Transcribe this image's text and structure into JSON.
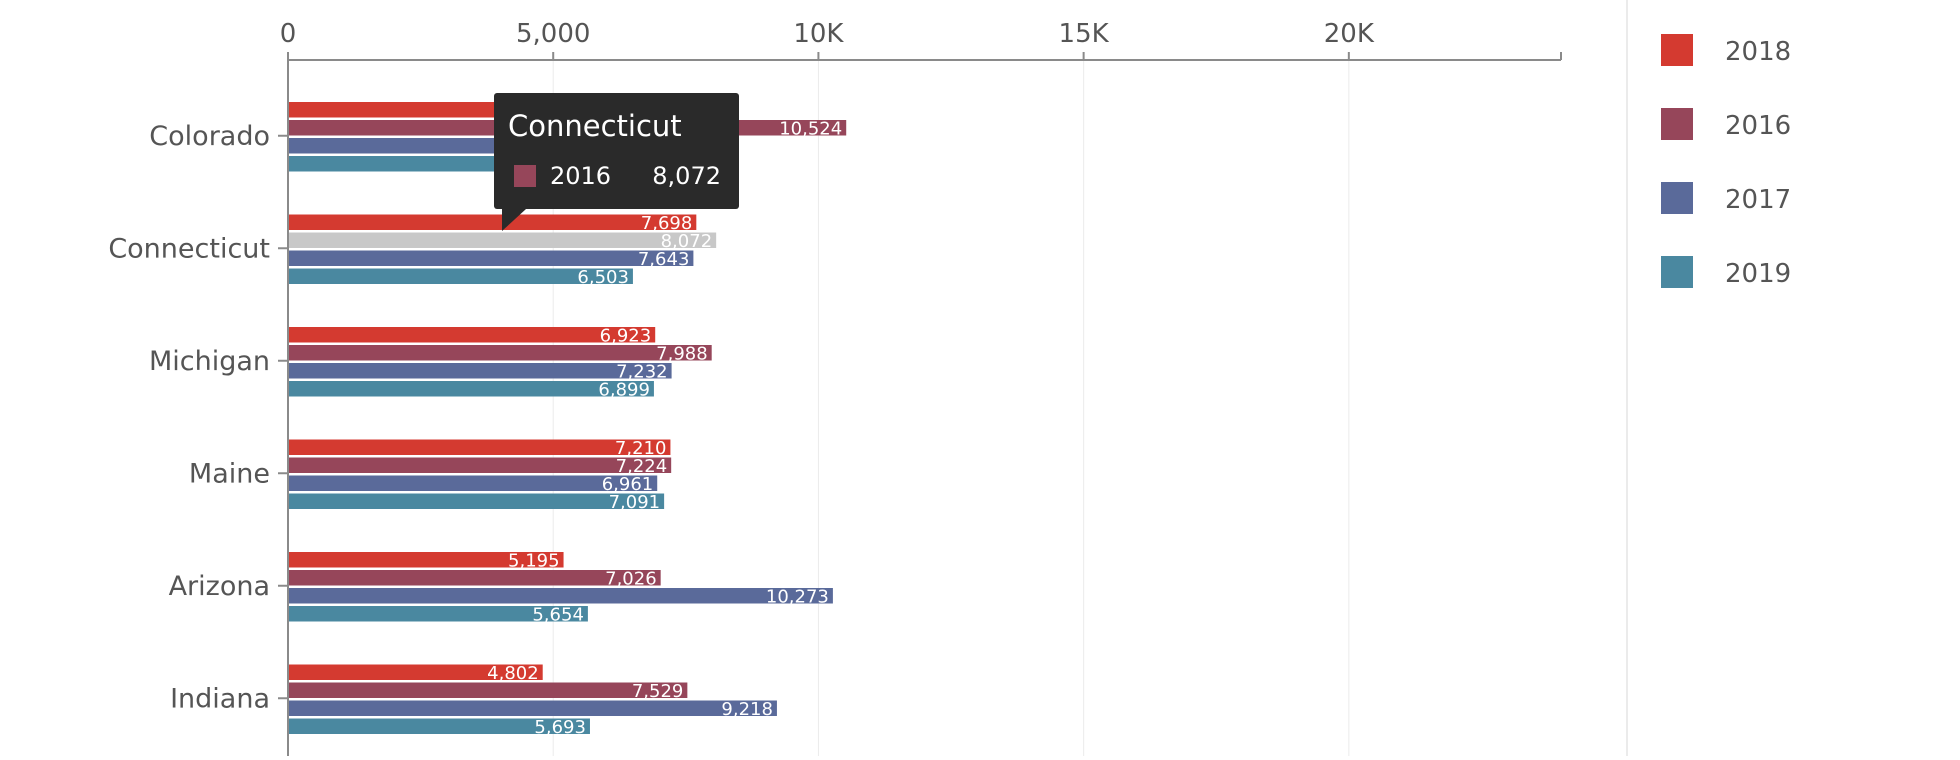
{
  "chart_data": {
    "type": "bar",
    "orientation": "horizontal",
    "categories": [
      "Colorado",
      "Connecticut",
      "Michigan",
      "Maine",
      "Arizona",
      "Indiana"
    ],
    "series": [
      {
        "name": "2018",
        "color": "#d43a30",
        "values": [
          4200,
          7698,
          6923,
          7210,
          5195,
          4802
        ],
        "labels": [
          "",
          "7,698",
          "6,923",
          "7,210",
          "5,195",
          "4,802"
        ]
      },
      {
        "name": "2016",
        "color": "#96465a",
        "values": [
          10524,
          8072,
          7988,
          7224,
          7026,
          7529
        ],
        "labels": [
          "10,524",
          "8,072",
          "7,988",
          "7,224",
          "7,026",
          "7,529"
        ]
      },
      {
        "name": "2017",
        "color": "#5a6a9a",
        "values": [
          4200,
          7643,
          7232,
          6961,
          10273,
          9218
        ],
        "labels": [
          "",
          "7,643",
          "7,232",
          "6,961",
          "10,273",
          "9,218"
        ]
      },
      {
        "name": "2019",
        "color": "#4a88a0",
        "values": [
          4200,
          6503,
          6899,
          7091,
          5654,
          5693
        ],
        "labels": [
          "",
          "6,503",
          "6,899",
          "7,091",
          "5,654",
          "5,693"
        ]
      }
    ],
    "x_axis": {
      "min": 0,
      "max": 24000,
      "ticks": [
        0,
        5000,
        10000,
        15000,
        20000
      ],
      "tick_labels": [
        "0",
        "5,000",
        "10K",
        "15K",
        "20K"
      ],
      "position": "top"
    },
    "grid": true,
    "legend": {
      "position": "right",
      "order": [
        "2018",
        "2016",
        "2017",
        "2019"
      ]
    },
    "highlight": {
      "category": "Connecticut",
      "series": "2016",
      "color": "#c8c8c8"
    },
    "tooltip": {
      "title": "Connecticut",
      "series": "2016",
      "value": "8,072",
      "color": "#96465a"
    }
  }
}
